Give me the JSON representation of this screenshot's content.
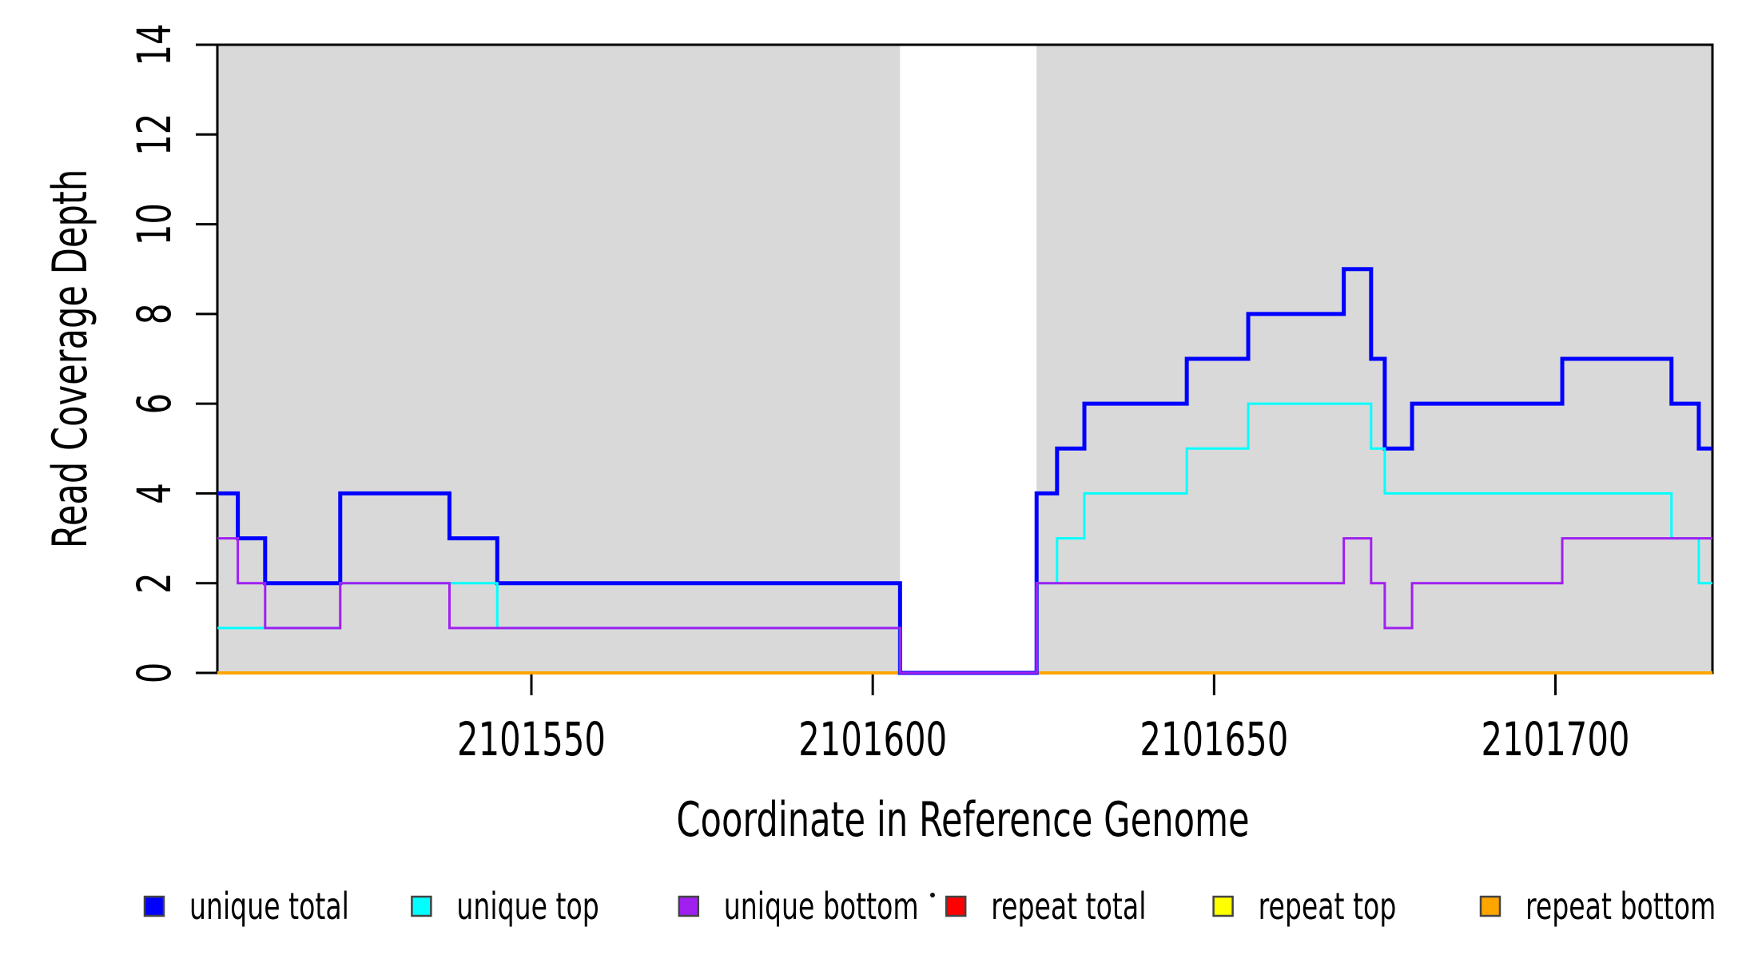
{
  "chart_data": {
    "type": "line",
    "subtype": "step-coverage",
    "title": "",
    "xlabel": "Coordinate in Reference Genome",
    "ylabel": "Read Coverage Depth",
    "xlim": [
      2101504,
      2101723
    ],
    "ylim": [
      0,
      14
    ],
    "xticks": [
      2101550,
      2101600,
      2101650,
      2101700
    ],
    "yticks": [
      0,
      2,
      4,
      6,
      8,
      10,
      12,
      14
    ],
    "grid": false,
    "background_color": "#ffffff",
    "shaded_regions": [
      {
        "x0": 2101504,
        "x1": 2101604,
        "color": "#D9D9D9"
      },
      {
        "x0": 2101624,
        "x1": 2101723,
        "color": "#D9D9D9"
      }
    ],
    "x_end": 2101723,
    "series": [
      {
        "name": "repeat total",
        "color": "#FF0000",
        "width": 3,
        "steps": [
          [
            2101504,
            0
          ]
        ]
      },
      {
        "name": "repeat top",
        "color": "#FFFF00",
        "width": 3,
        "steps": [
          [
            2101504,
            0
          ]
        ]
      },
      {
        "name": "repeat bottom",
        "color": "#FFA500",
        "width": 4,
        "steps": [
          [
            2101504,
            0
          ]
        ]
      },
      {
        "name": "unique total",
        "color": "#0000FF",
        "width": 5,
        "steps": [
          [
            2101504,
            4
          ],
          [
            2101507,
            3
          ],
          [
            2101511,
            2
          ],
          [
            2101522,
            4
          ],
          [
            2101538,
            3
          ],
          [
            2101545,
            2
          ],
          [
            2101604,
            0
          ],
          [
            2101624,
            4
          ],
          [
            2101627,
            5
          ],
          [
            2101631,
            6
          ],
          [
            2101646,
            7
          ],
          [
            2101655,
            8
          ],
          [
            2101669,
            9
          ],
          [
            2101673,
            7
          ],
          [
            2101675,
            5
          ],
          [
            2101679,
            6
          ],
          [
            2101701,
            7
          ],
          [
            2101717,
            6
          ],
          [
            2101721,
            5
          ]
        ]
      },
      {
        "name": "unique top",
        "color": "#00FFFF",
        "width": 3,
        "steps": [
          [
            2101504,
            1
          ],
          [
            2101522,
            2
          ],
          [
            2101545,
            1
          ],
          [
            2101604,
            0
          ],
          [
            2101624,
            2
          ],
          [
            2101627,
            3
          ],
          [
            2101631,
            4
          ],
          [
            2101646,
            5
          ],
          [
            2101655,
            6
          ],
          [
            2101673,
            5
          ],
          [
            2101675,
            4
          ],
          [
            2101717,
            3
          ],
          [
            2101721,
            2
          ]
        ]
      },
      {
        "name": "unique bottom",
        "color": "#A020F0",
        "width": 3,
        "steps": [
          [
            2101504,
            3
          ],
          [
            2101507,
            2
          ],
          [
            2101511,
            1
          ],
          [
            2101522,
            2
          ],
          [
            2101538,
            1
          ],
          [
            2101604,
            0
          ],
          [
            2101624,
            2
          ],
          [
            2101669,
            3
          ],
          [
            2101673,
            2
          ],
          [
            2101675,
            1
          ],
          [
            2101679,
            2
          ],
          [
            2101701,
            3
          ]
        ]
      }
    ],
    "legend_position": "bottom"
  },
  "legend": {
    "items": [
      {
        "label": "unique total",
        "color": "#0000FF"
      },
      {
        "label": "unique top",
        "color": "#00FFFF"
      },
      {
        "label": "unique bottom",
        "color": "#A020F0"
      },
      {
        "label": "repeat total",
        "color": "#FF0000"
      },
      {
        "label": "repeat top",
        "color": "#FFFF00"
      },
      {
        "label": "repeat bottom",
        "color": "#FFA500"
      }
    ]
  }
}
